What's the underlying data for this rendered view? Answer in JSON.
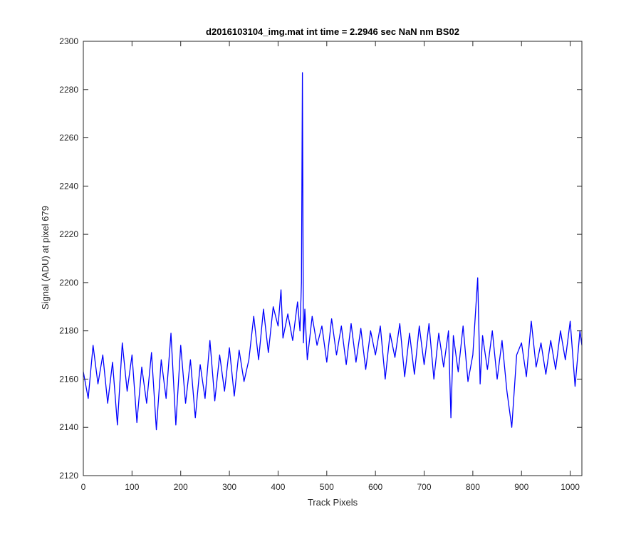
{
  "chart_data": {
    "type": "line",
    "title": "d2016103104_img.mat int time = 2.2946 sec  NaN nm BS02",
    "xlabel": "Track Pixels",
    "ylabel": "Signal (ADU) at pixel 679",
    "xlim": [
      0,
      1024
    ],
    "ylim": [
      2120,
      2300
    ],
    "xticks": [
      0,
      100,
      200,
      300,
      400,
      500,
      600,
      700,
      800,
      900,
      1000
    ],
    "yticks": [
      2120,
      2140,
      2160,
      2180,
      2200,
      2220,
      2240,
      2260,
      2280,
      2300
    ],
    "grid": false,
    "series_color": "#0000ff",
    "series": [
      {
        "x": [
          0,
          10,
          20,
          30,
          40,
          50,
          60,
          70,
          80,
          90,
          100,
          110,
          120,
          130,
          140,
          150,
          160,
          170,
          180,
          190,
          200,
          210,
          220,
          230,
          240,
          250,
          260,
          270,
          280,
          290,
          300,
          310,
          320,
          330,
          340,
          350,
          360,
          370,
          380,
          390,
          400,
          406,
          410,
          420,
          430,
          440,
          445,
          448,
          450,
          452,
          455,
          460,
          470,
          480,
          490,
          500,
          510,
          520,
          530,
          540,
          550,
          560,
          570,
          580,
          590,
          600,
          610,
          620,
          630,
          640,
          650,
          660,
          670,
          680,
          690,
          700,
          710,
          720,
          730,
          740,
          750,
          755,
          760,
          770,
          780,
          790,
          800,
          805,
          810,
          815,
          820,
          830,
          840,
          850,
          860,
          870,
          880,
          890,
          900,
          910,
          920,
          930,
          940,
          950,
          960,
          970,
          980,
          990,
          1000,
          1010,
          1020,
          1024
        ],
        "values": [
          2163,
          2152,
          2174,
          2158,
          2170,
          2150,
          2167,
          2141,
          2175,
          2155,
          2170,
          2142,
          2165,
          2150,
          2171,
          2139,
          2168,
          2152,
          2179,
          2141,
          2174,
          2150,
          2168,
          2144,
          2166,
          2152,
          2176,
          2151,
          2170,
          2155,
          2173,
          2153,
          2172,
          2159,
          2168,
          2186,
          2168,
          2189,
          2171,
          2190,
          2182,
          2197,
          2177,
          2187,
          2176,
          2192,
          2180,
          2200,
          2287,
          2175,
          2189,
          2168,
          2186,
          2174,
          2182,
          2167,
          2185,
          2170,
          2182,
          2166,
          2183,
          2167,
          2181,
          2164,
          2180,
          2170,
          2182,
          2160,
          2179,
          2169,
          2183,
          2161,
          2179,
          2162,
          2182,
          2166,
          2183,
          2160,
          2179,
          2165,
          2180,
          2144,
          2178,
          2163,
          2182,
          2159,
          2170,
          2186,
          2202,
          2158,
          2178,
          2164,
          2180,
          2160,
          2176,
          2155,
          2140,
          2170,
          2175,
          2161,
          2184,
          2165,
          2175,
          2162,
          2176,
          2164,
          2180,
          2168,
          2184,
          2157,
          2180,
          2174
        ]
      }
    ]
  }
}
